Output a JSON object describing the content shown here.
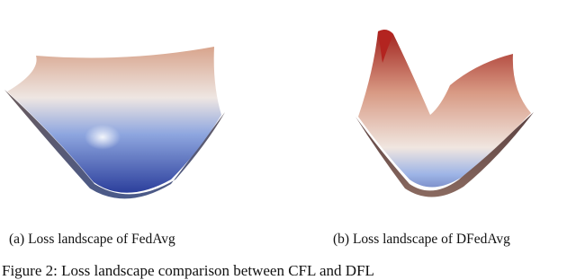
{
  "figure": {
    "panels": [
      {
        "label": "(a) Loss landscape of FedAvg"
      },
      {
        "label": "(b) Loss landscape of DFedAvg"
      }
    ],
    "caption": "Figure 2: Loss landscape comparison between CFL and DFL"
  }
}
